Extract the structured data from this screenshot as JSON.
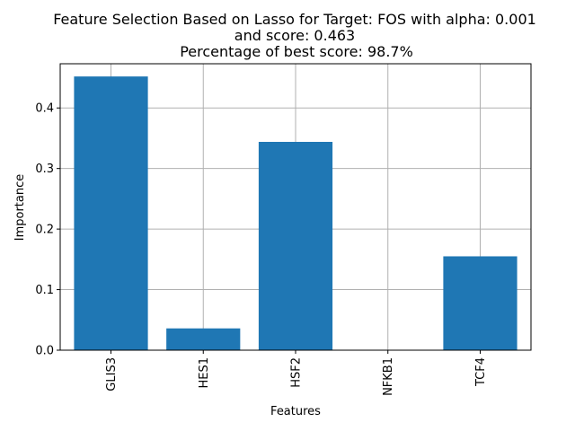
{
  "chart_data": {
    "type": "bar",
    "title_lines": [
      "Feature Selection Based on Lasso for Target: FOS with alpha: 0.001",
      "and score: 0.463",
      "Percentage of best score: 98.7%"
    ],
    "xlabel": "Features",
    "ylabel": "Importance",
    "categories": [
      "GLIS3",
      "HES1",
      "HSF2",
      "NFKB1",
      "TCF4"
    ],
    "values": [
      0.452,
      0.036,
      0.344,
      0.0,
      0.155
    ],
    "ylim": [
      0,
      0.473
    ],
    "yticks": [
      0.0,
      0.1,
      0.2,
      0.3,
      0.4
    ],
    "ytick_labels": [
      "0.0",
      "0.1",
      "0.2",
      "0.3",
      "0.4"
    ],
    "grid": true,
    "bar_color": "#1f77b4",
    "grid_color": "#b0b0b0"
  }
}
